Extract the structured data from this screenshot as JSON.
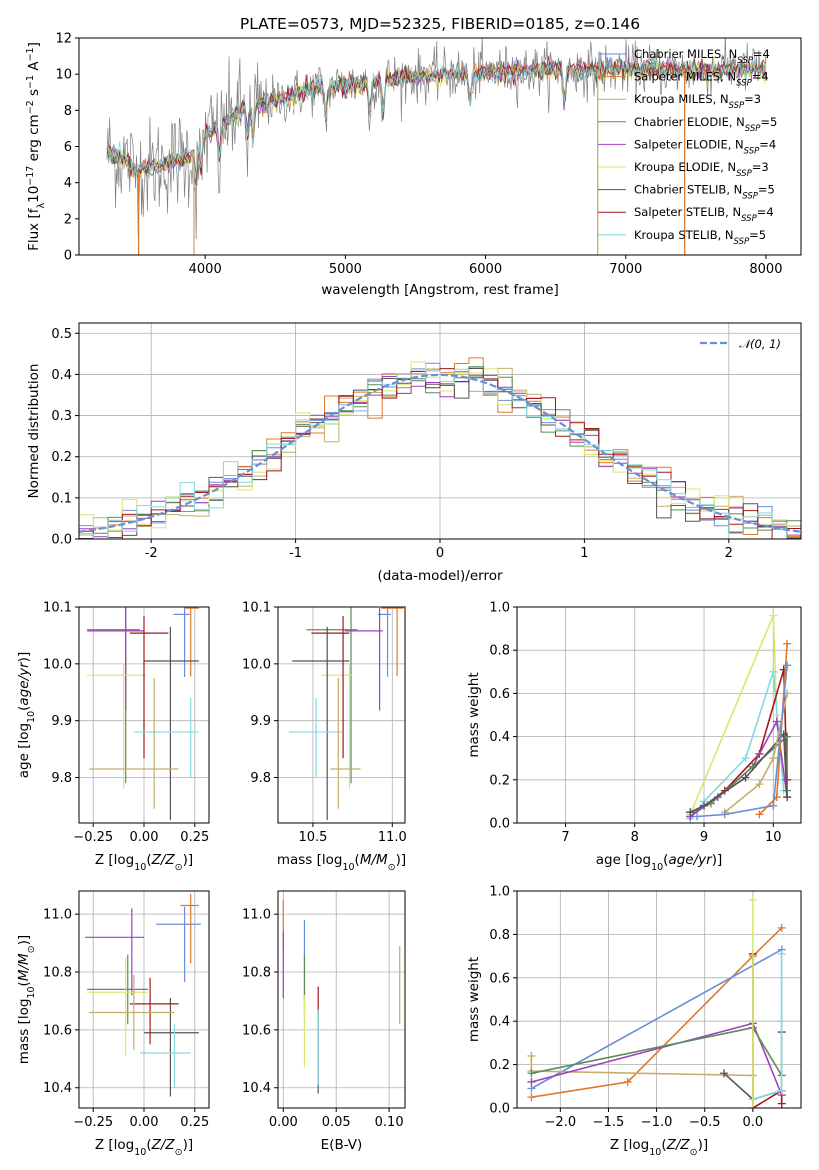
{
  "colors": [
    "#6a8fd6",
    "#e0782a",
    "#c5ad6c",
    "#5b8c5a",
    "#a23fbf",
    "#d8e86d",
    "#545454",
    "#a3191c",
    "#86d9dd"
  ],
  "chart_data": [
    {
      "id": "spectrum",
      "type": "line",
      "title": "PLATE=0573, MJD=52325, FIBERID=0185, z=0.146",
      "xlabel": "wavelength [Angstrom, rest frame]",
      "ylabel": "Flux [f",
      "ylabel_parts": [
        "Flux [f",
        "λ",
        "10",
        "−17",
        " erg cm",
        "−2",
        " s",
        "−1",
        " A",
        "−1",
        "]"
      ],
      "xlim": [
        3100,
        8250
      ],
      "ylim": [
        0,
        12
      ],
      "xticks": [
        4000,
        5000,
        6000,
        7000,
        8000
      ],
      "yticks": [
        0,
        2,
        4,
        6,
        8,
        10,
        12
      ],
      "grid": false,
      "legend_position": "top-right",
      "observed_color": "#808080",
      "series": [
        {
          "name": "Chabrier MILES, N",
          "sub": "SSP",
          "eq": "=4"
        },
        {
          "name": "Salpeter MILES, N",
          "sub": "SSP",
          "eq": "=4"
        },
        {
          "name": "Kroupa MILES, N",
          "sub": "SSP",
          "eq": "=3"
        },
        {
          "name": "Chabrier ELODIE, N",
          "sub": "SSP",
          "eq": "=5"
        },
        {
          "name": "Salpeter ELODIE, N",
          "sub": "SSP",
          "eq": "=4"
        },
        {
          "name": "Kroupa ELODIE, N",
          "sub": "SSP",
          "eq": "=3"
        },
        {
          "name": "Chabrier STELIB, N",
          "sub": "SSP",
          "eq": "=5"
        },
        {
          "name": "Salpeter STELIB, N",
          "sub": "SSP",
          "eq": "=4"
        },
        {
          "name": "Kroupa STELIB, N",
          "sub": "SSP",
          "eq": "=5"
        }
      ],
      "continuum": {
        "x": [
          3300,
          3450,
          3500,
          3550,
          3700,
          3900,
          4000,
          4100,
          4300,
          4500,
          4800,
          5000,
          5200,
          5400,
          5600,
          6000,
          6400,
          7000,
          7500,
          8000
        ],
        "y": [
          5.7,
          5.2,
          4.6,
          4.7,
          5.0,
          5.5,
          6.6,
          7.1,
          8.2,
          8.5,
          9.3,
          9.4,
          9.6,
          9.8,
          9.9,
          10.1,
          10.2,
          10.3,
          10.2,
          10.3
        ]
      },
      "absorption_lines": [
        3934,
        3969,
        4102,
        4304,
        4340,
        4861,
        5175,
        5270,
        5890,
        6563
      ],
      "vertical_drops": [
        {
          "x": 3525,
          "color": "#e0782a"
        },
        {
          "x": 3920,
          "color": "#c5ad6c"
        },
        {
          "x": 6800,
          "color": "#c5ad6c"
        },
        {
          "x": 7420,
          "color": "#e0782a"
        }
      ]
    },
    {
      "id": "residuals",
      "type": "line",
      "xlabel": "(data-model)/error",
      "ylabel": "Normed distribution",
      "xlim": [
        -2.5,
        2.5
      ],
      "ylim": [
        0,
        0.525
      ],
      "xticks": [
        -2,
        -1,
        0,
        1,
        2
      ],
      "yticks": [
        0.0,
        0.1,
        0.2,
        0.3,
        0.4,
        0.5
      ],
      "grid": true,
      "legend_position": "top-right",
      "reference_series": {
        "name": "N(0,1)",
        "label": "𝒩(0, 1)",
        "mu": 0,
        "sigma": 1,
        "color": "#6a8fd6",
        "dashed": true
      },
      "bin_width": 0.1,
      "step_series": "normal distribution histogram for each of the 9 fits"
    },
    {
      "id": "age_vs_Z",
      "type": "scatter",
      "xlabel": "Z [log",
      "xlabel_parts": [
        "Z [log",
        "10",
        "(",
        "Z/Z",
        "⊙",
        ")]"
      ],
      "ylabel_parts": [
        "age  [log",
        "10",
        "(",
        "age/yr",
        ")]"
      ],
      "xlim": [
        -0.32,
        0.32
      ],
      "ylim": [
        9.72,
        10.1
      ],
      "xticks": [
        -0.25,
        0.0,
        0.25
      ],
      "xtick_labels": [
        "−0.25",
        "0.00",
        "0.25"
      ],
      "yticks": [
        9.8,
        9.9,
        10.0,
        10.1
      ],
      "grid": true,
      "points": [
        {
          "c": 0,
          "x": 0.2,
          "y": 10.087,
          "xerr": [
            0.055,
            0.025
          ],
          "yerr": [
            0.11,
            0.015
          ]
        },
        {
          "c": 1,
          "x": 0.23,
          "y": 10.098,
          "xerr": [
            0.025,
            0.04
          ],
          "yerr": [
            0.12,
            0.01
          ]
        },
        {
          "c": 3,
          "x": -0.09,
          "y": 10.06,
          "xerr": [
            0.19,
            0.07
          ],
          "yerr": [
            0.27,
            0.08
          ]
        },
        {
          "c": 4,
          "x": -0.09,
          "y": 10.058,
          "xerr": [
            0.19,
            0.09
          ],
          "yerr": [
            0.14,
            0.04
          ]
        },
        {
          "c": 5,
          "x": -0.1,
          "y": 9.98,
          "xerr": [
            0.18,
            0.11
          ],
          "yerr": [
            0.2,
            0.02
          ]
        },
        {
          "c": 6,
          "x": 0.13,
          "y": 10.005,
          "xerr": [
            0.13,
            0.14
          ],
          "yerr": [
            0.28,
            0.06
          ]
        },
        {
          "c": 7,
          "x": 0.0,
          "y": 10.054,
          "xerr": [
            0.07,
            0.12
          ],
          "yerr": [
            0.22,
            0.03
          ]
        },
        {
          "c": 8,
          "x": 0.23,
          "y": 9.88,
          "xerr": [
            0.28,
            0.04
          ],
          "yerr": [
            0.08,
            0.06
          ]
        },
        {
          "c": 2,
          "x": 0.05,
          "y": 9.815,
          "xerr": [
            0.32,
            0.12
          ],
          "yerr": [
            0.07,
            0.16
          ]
        }
      ]
    },
    {
      "id": "age_vs_mass",
      "type": "scatter",
      "xlabel_parts": [
        "mass [log",
        "10",
        "(",
        "M/M",
        "⊙",
        ")]"
      ],
      "xlim": [
        10.28,
        11.08
      ],
      "ylim": [
        9.72,
        10.1
      ],
      "xticks": [
        10.5,
        11.0
      ],
      "xtick_labels": [
        "10.5",
        "11.0"
      ],
      "yticks": [
        9.8,
        9.9,
        10.0,
        10.1
      ],
      "grid": true,
      "points": [
        {
          "c": 0,
          "x": 10.97,
          "y": 10.087,
          "xerr": [
            0.06,
            0.02
          ],
          "yerr": [
            0.11,
            0.015
          ]
        },
        {
          "c": 1,
          "x": 11.03,
          "y": 10.098,
          "xerr": [
            0.1,
            0.04
          ],
          "yerr": [
            0.12,
            0.01
          ]
        },
        {
          "c": 3,
          "x": 10.74,
          "y": 10.06,
          "xerr": [
            0.28,
            0.04
          ],
          "yerr": [
            0.27,
            0.08
          ]
        },
        {
          "c": 4,
          "x": 10.92,
          "y": 10.058,
          "xerr": [
            0.22,
            0.02
          ],
          "yerr": [
            0.14,
            0.04
          ]
        },
        {
          "c": 5,
          "x": 10.73,
          "y": 9.98,
          "xerr": [
            0.18,
            0.02
          ],
          "yerr": [
            0.2,
            0.02
          ]
        },
        {
          "c": 6,
          "x": 10.59,
          "y": 10.005,
          "xerr": [
            0.22,
            0.14
          ],
          "yerr": [
            0.28,
            0.06
          ]
        },
        {
          "c": 7,
          "x": 10.69,
          "y": 10.054,
          "xerr": [
            0.2,
            0.04
          ],
          "yerr": [
            0.22,
            0.03
          ]
        },
        {
          "c": 8,
          "x": 10.52,
          "y": 9.88,
          "xerr": [
            0.17,
            0.16
          ],
          "yerr": [
            0.08,
            0.06
          ]
        },
        {
          "c": 2,
          "x": 10.66,
          "y": 9.815,
          "xerr": [
            0.05,
            0.14
          ],
          "yerr": [
            0.07,
            0.16
          ]
        }
      ]
    },
    {
      "id": "mass_weight_vs_age",
      "type": "line",
      "xlabel_parts": [
        "age  [log",
        "10",
        "(",
        "age/yr",
        ")]"
      ],
      "ylabel": "mass weight",
      "xlim": [
        6.3,
        10.4
      ],
      "ylim": [
        0,
        1
      ],
      "xticks": [
        7,
        8,
        9,
        10
      ],
      "yticks": [
        0.0,
        0.2,
        0.4,
        0.6,
        0.8,
        1.0
      ],
      "grid": true,
      "series": [
        {
          "c": 5,
          "x": [
            8.8,
            10.0,
            10.05
          ],
          "y": [
            0.04,
            0.96,
            0.5
          ]
        },
        {
          "c": 8,
          "x": [
            8.8,
            9.0,
            9.6,
            10.0,
            10.15
          ],
          "y": [
            0.02,
            0.1,
            0.3,
            0.7,
            0.15
          ]
        },
        {
          "c": 7,
          "x": [
            8.8,
            9.3,
            9.8,
            10.15,
            10.2
          ],
          "y": [
            0.03,
            0.15,
            0.32,
            0.71,
            0.2
          ]
        },
        {
          "c": 4,
          "x": [
            8.8,
            9.2,
            9.7,
            10.05,
            10.2
          ],
          "y": [
            0.03,
            0.12,
            0.26,
            0.47,
            0.12
          ]
        },
        {
          "c": 3,
          "x": [
            8.8,
            9.1,
            9.7,
            10.2,
            10.2
          ],
          "y": [
            0.05,
            0.09,
            0.26,
            0.4,
            0.15
          ]
        },
        {
          "c": 6,
          "x": [
            8.8,
            9.0,
            9.6,
            10.15,
            10.2
          ],
          "y": [
            0.05,
            0.08,
            0.21,
            0.41,
            0.12
          ]
        },
        {
          "c": 2,
          "x": [
            9.3,
            9.8,
            10.0,
            10.2
          ],
          "y": [
            0.05,
            0.18,
            0.3,
            0.6
          ]
        },
        {
          "c": 1,
          "x": [
            9.8,
            10.05,
            10.2
          ],
          "y": [
            0.04,
            0.12,
            0.83
          ]
        },
        {
          "c": 0,
          "x": [
            8.9,
            9.3,
            10.0,
            10.2
          ],
          "y": [
            0.03,
            0.04,
            0.08,
            0.73
          ]
        }
      ]
    },
    {
      "id": "mass_vs_Z",
      "type": "scatter",
      "xlabel_parts": [
        "Z [log",
        "10",
        "(",
        "Z/Z",
        "⊙",
        ")]"
      ],
      "ylabel_parts": [
        "mass [log",
        "10",
        "(",
        "M/M",
        "⊙",
        ")]"
      ],
      "xlim": [
        -0.32,
        0.32
      ],
      "ylim": [
        10.33,
        11.08
      ],
      "xticks": [
        -0.25,
        0.0,
        0.25
      ],
      "xtick_labels": [
        "−0.25",
        "0.00",
        "0.25"
      ],
      "yticks": [
        10.4,
        10.6,
        10.8,
        11.0
      ],
      "grid": true,
      "points": [
        {
          "c": 0,
          "x": 0.2,
          "y": 10.965,
          "xerr": [
            0.14,
            0.08
          ],
          "yerr": [
            0.2,
            0.06
          ]
        },
        {
          "c": 1,
          "x": 0.23,
          "y": 11.03,
          "xerr": [
            0.05,
            0.04
          ],
          "yerr": [
            0.2,
            0.04
          ]
        },
        {
          "c": 3,
          "x": -0.08,
          "y": 10.74,
          "xerr": [
            0.2,
            0.1
          ],
          "yerr": [
            0.12,
            0.12
          ]
        },
        {
          "c": 4,
          "x": -0.06,
          "y": 10.92,
          "xerr": [
            0.23,
            0.06
          ],
          "yerr": [
            0.2,
            0.1
          ]
        },
        {
          "c": 5,
          "x": -0.09,
          "y": 10.73,
          "xerr": [
            0.19,
            0.11
          ],
          "yerr": [
            0.22,
            0.12
          ]
        },
        {
          "c": 6,
          "x": 0.13,
          "y": 10.59,
          "xerr": [
            0.13,
            0.14
          ],
          "yerr": [
            0.22,
            0.12
          ]
        },
        {
          "c": 7,
          "x": 0.03,
          "y": 10.69,
          "xerr": [
            0.1,
            0.14
          ],
          "yerr": [
            0.14,
            0.09
          ]
        },
        {
          "c": 8,
          "x": 0.15,
          "y": 10.52,
          "xerr": [
            0.17,
            0.08
          ],
          "yerr": [
            0.12,
            0.1
          ]
        },
        {
          "c": 2,
          "x": -0.05,
          "y": 10.66,
          "xerr": [
            0.22,
            0.2
          ],
          "yerr": [
            0.13,
            0.13
          ]
        }
      ]
    },
    {
      "id": "mass_vs_EBV",
      "type": "scatter",
      "xlabel": "E(B-V)",
      "xlim": [
        -0.005,
        0.115
      ],
      "ylim": [
        10.33,
        11.08
      ],
      "xticks": [
        0.0,
        0.05,
        0.1
      ],
      "xtick_labels": [
        "0.00",
        "0.05",
        "0.10"
      ],
      "yticks": [
        10.4,
        10.6,
        10.8,
        11.0
      ],
      "grid": true,
      "points": [
        {
          "c": 1,
          "x": 0.0,
          "y": 10.98,
          "xerr": [
            0,
            0
          ],
          "yerr": [
            0.1,
            0.07
          ]
        },
        {
          "c": 4,
          "x": 0.0,
          "y": 10.82,
          "xerr": [
            0,
            0
          ],
          "yerr": [
            0.11,
            0.12
          ]
        },
        {
          "c": 0,
          "x": 0.02,
          "y": 10.9,
          "xerr": [
            0,
            0
          ],
          "yerr": [
            0.2,
            0.08
          ]
        },
        {
          "c": 3,
          "x": 0.02,
          "y": 10.8,
          "xerr": [
            0,
            0
          ],
          "yerr": [
            0.16,
            0.06
          ]
        },
        {
          "c": 5,
          "x": 0.02,
          "y": 10.6,
          "xerr": [
            0,
            0
          ],
          "yerr": [
            0.13,
            0.12
          ]
        },
        {
          "c": 7,
          "x": 0.033,
          "y": 10.7,
          "xerr": [
            0,
            0
          ],
          "yerr": [
            0.05,
            0.05
          ]
        },
        {
          "c": 6,
          "x": 0.033,
          "y": 10.5,
          "xerr": [
            0,
            0
          ],
          "yerr": [
            0.12,
            0.16
          ]
        },
        {
          "c": 8,
          "x": 0.033,
          "y": 10.53,
          "xerr": [
            0,
            0
          ],
          "yerr": [
            0.12,
            0.14
          ]
        },
        {
          "c": 2,
          "x": 0.11,
          "y": 10.75,
          "xerr": [
            0,
            0
          ],
          "yerr": [
            0.13,
            0.14
          ]
        }
      ]
    },
    {
      "id": "mass_weight_vs_Z",
      "type": "line",
      "xlabel_parts": [
        "Z [log",
        "10",
        "(",
        "Z/Z",
        "⊙",
        ")]"
      ],
      "ylabel": "mass weight",
      "xlim": [
        -2.45,
        0.5
      ],
      "ylim": [
        0,
        1
      ],
      "xticks": [
        -2.0,
        -1.5,
        -1.0,
        -0.5,
        0.0
      ],
      "xtick_labels": [
        "−2.0",
        "−1.5",
        "−1.0",
        "−0.5",
        "0.0"
      ],
      "yticks": [
        0.0,
        0.2,
        0.4,
        0.6,
        0.8,
        1.0
      ],
      "grid": true,
      "series": [
        {
          "c": 1,
          "x": [
            -2.3,
            -1.3,
            0.0,
            0.3
          ],
          "y": [
            0.05,
            0.12,
            0.7,
            0.83
          ]
        },
        {
          "c": 0,
          "x": [
            -2.3,
            0.3,
            0.3
          ],
          "y": [
            0.09,
            0.73,
            0.06
          ]
        },
        {
          "c": 2,
          "x": [
            -2.3,
            -2.3,
            0.0,
            0.0
          ],
          "y": [
            0.24,
            0.17,
            0.15,
            0.04
          ]
        },
        {
          "c": 4,
          "x": [
            -2.3,
            0.0,
            0.3
          ],
          "y": [
            0.12,
            0.39,
            0.06
          ]
        },
        {
          "c": 3,
          "x": [
            -2.3,
            0.0,
            0.3
          ],
          "y": [
            0.16,
            0.37,
            0.15
          ]
        },
        {
          "c": 6,
          "x": [
            -0.3,
            0.0,
            0.3,
            0.3
          ],
          "y": [
            0.16,
            0.04,
            0.08,
            0.35
          ]
        },
        {
          "c": 7,
          "x": [
            0.0,
            0.0,
            0.3,
            0.3
          ],
          "y": [
            0.71,
            0.0,
            0.08,
            0.02
          ]
        },
        {
          "c": 8,
          "x": [
            0.0,
            0.3,
            0.3,
            0.3
          ],
          "y": [
            0.04,
            0.08,
            0.71,
            0.4
          ]
        },
        {
          "c": 5,
          "x": [
            0.0,
            0.0
          ],
          "y": [
            0.96,
            0.0
          ]
        }
      ]
    }
  ]
}
